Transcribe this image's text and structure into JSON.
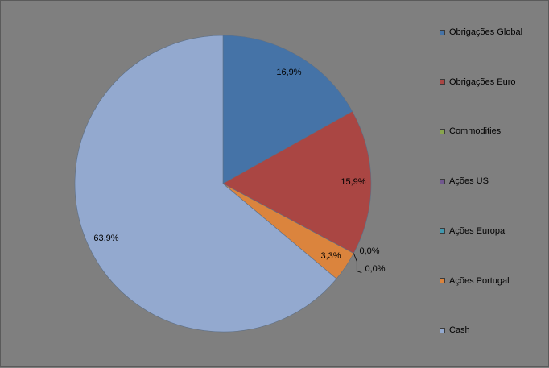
{
  "chart_data": {
    "type": "pie",
    "categories": [
      "Obrigações Global",
      "Obrigações Euro",
      "Commodities",
      "Ações US",
      "Ações Europa",
      "Ações Portugal",
      "Cash"
    ],
    "values": [
      16.9,
      15.9,
      0.0,
      0.0,
      0.0,
      3.3,
      63.9
    ],
    "data_labels": [
      "16,9%",
      "15,9%",
      "0,0%",
      "0,0%",
      "0,0%",
      "3,3%",
      "63,9%"
    ],
    "colors": [
      "#4573a7",
      "#aa4643",
      "#89a54e",
      "#71588f",
      "#4198af",
      "#db843d",
      "#93a9cf"
    ],
    "start_angle_deg": 0,
    "direction": "clockwise",
    "legend_position": "right"
  }
}
